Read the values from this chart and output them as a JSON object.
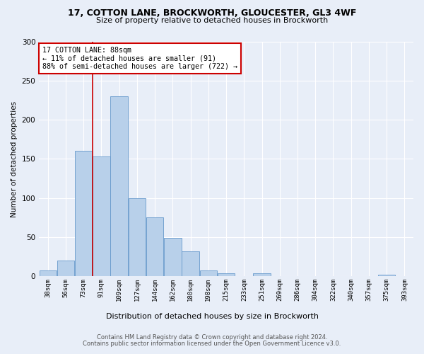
{
  "title_line1": "17, COTTON LANE, BROCKWORTH, GLOUCESTER, GL3 4WF",
  "title_line2": "Size of property relative to detached houses in Brockworth",
  "xlabel": "Distribution of detached houses by size in Brockworth",
  "ylabel": "Number of detached properties",
  "bar_labels": [
    "38sqm",
    "56sqm",
    "73sqm",
    "91sqm",
    "109sqm",
    "127sqm",
    "144sqm",
    "162sqm",
    "180sqm",
    "198sqm",
    "215sqm",
    "233sqm",
    "251sqm",
    "269sqm",
    "286sqm",
    "304sqm",
    "322sqm",
    "340sqm",
    "357sqm",
    "375sqm",
    "393sqm"
  ],
  "bar_values": [
    7,
    20,
    160,
    153,
    230,
    100,
    75,
    49,
    32,
    7,
    4,
    0,
    4,
    0,
    0,
    0,
    0,
    0,
    0,
    2,
    0
  ],
  "bar_color": "#b8d0ea",
  "bar_edge_color": "#6699cc",
  "background_color": "#e8eef8",
  "grid_color": "#ffffff",
  "annotation_text": "17 COTTON LANE: 88sqm\n← 11% of detached houses are smaller (91)\n88% of semi-detached houses are larger (722) →",
  "annotation_box_color": "#ffffff",
  "annotation_border_color": "#cc0000",
  "vline_x": 2.5,
  "vline_color": "#cc0000",
  "ylim": [
    0,
    300
  ],
  "yticks": [
    0,
    50,
    100,
    150,
    200,
    250,
    300
  ],
  "footer_line1": "Contains HM Land Registry data © Crown copyright and database right 2024.",
  "footer_line2": "Contains public sector information licensed under the Open Government Licence v3.0."
}
